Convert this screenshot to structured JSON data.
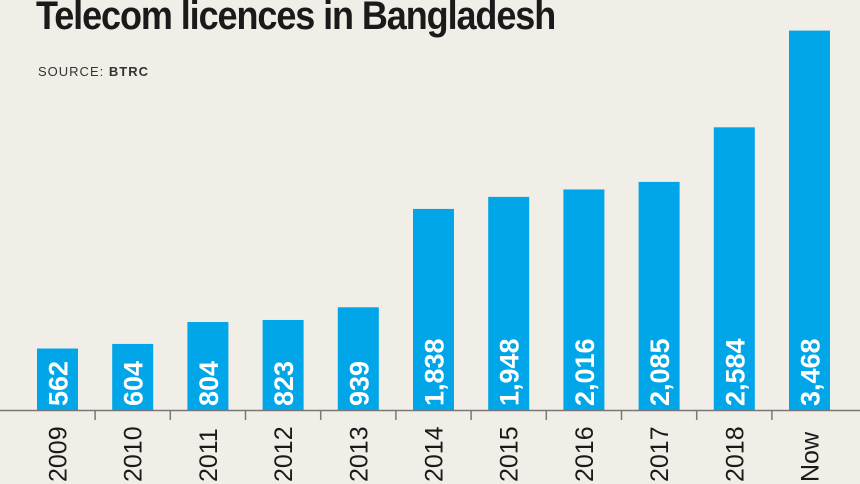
{
  "title": "Telecom licences in Bangladesh",
  "source_label": "SOURCE:",
  "source_value": "BTRC",
  "colors": {
    "bar": "#00a6e8",
    "background": "#f1eee7",
    "text": "#1a1a1a",
    "bar_label": "#ffffff"
  },
  "chart_data": {
    "type": "bar",
    "categories": [
      "2009",
      "2010",
      "2011",
      "2012",
      "2013",
      "2014",
      "2015",
      "2016",
      "2017",
      "2018",
      "Now"
    ],
    "values": [
      562,
      604,
      804,
      823,
      939,
      1838,
      1948,
      2016,
      2085,
      2584,
      3468
    ],
    "value_labels": [
      "562",
      "604",
      "804",
      "823",
      "939",
      "1,838",
      "1,948",
      "2,016",
      "2,085",
      "2,584",
      "3,468"
    ],
    "title": "Telecom licences in Bangladesh",
    "xlabel": "",
    "ylabel": "",
    "grid": false,
    "legend": "none"
  }
}
